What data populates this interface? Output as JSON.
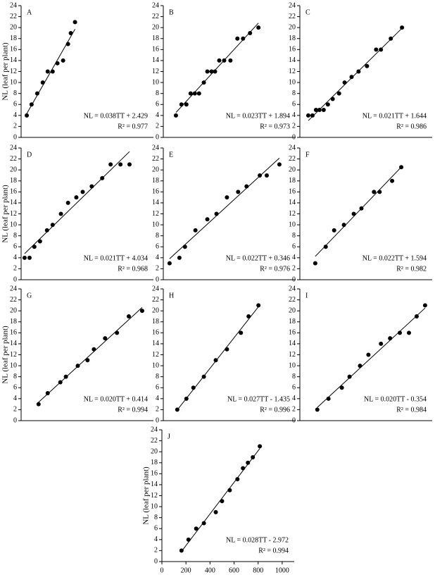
{
  "chart_data": [
    {
      "type": "scatter",
      "panel": "A",
      "ylabel": "NL (leaf per plant)",
      "color": "#000000",
      "x": [
        47,
        87,
        134,
        180,
        221,
        262,
        302,
        349,
        390,
        413,
        448
      ],
      "values": [
        4,
        6,
        8,
        10,
        12,
        12,
        13.5,
        14,
        17,
        19,
        21
      ],
      "xlim": [
        0,
        1100
      ],
      "ylim": [
        0,
        24
      ],
      "yticks": [
        0,
        2,
        4,
        6,
        8,
        10,
        12,
        14,
        16,
        18,
        20,
        22,
        24
      ],
      "annotations": [
        "NL = 0.038TT + 2.429",
        "R² = 0.977"
      ]
    },
    {
      "type": "scatter",
      "panel": "B",
      "color": "#000000",
      "x": [
        105,
        151,
        192,
        227,
        262,
        297,
        337,
        366,
        401,
        430,
        465,
        506,
        558,
        616,
        663,
        721,
        791
      ],
      "values": [
        4,
        6,
        6,
        8,
        8,
        8,
        10,
        12,
        12,
        12,
        14,
        14,
        14,
        18,
        18,
        19,
        20
      ],
      "xlim": [
        0,
        1100
      ],
      "ylim": [
        0,
        24
      ],
      "yticks": [
        0,
        2,
        4,
        6,
        8,
        10,
        12,
        14,
        16,
        18,
        20,
        22,
        24
      ],
      "annotations": [
        "NL = 0.023TT + 1.894",
        "R² = 0.973"
      ]
    },
    {
      "type": "scatter",
      "panel": "C",
      "color": "#000000",
      "x": [
        70,
        105,
        134,
        163,
        198,
        233,
        273,
        326,
        372,
        430,
        488,
        558,
        634,
        674,
        756,
        849
      ],
      "values": [
        4,
        4,
        5,
        5,
        5,
        6,
        7,
        8,
        10,
        11,
        12,
        13,
        16,
        16,
        18,
        20
      ],
      "xlim": [
        0,
        1100
      ],
      "ylim": [
        0,
        24
      ],
      "yticks": [
        0,
        2,
        4,
        6,
        8,
        10,
        12,
        14,
        16,
        18,
        20,
        22,
        24
      ],
      "annotations": [
        "NL = 0.021TT + 1.644",
        "R² = 0.986"
      ]
    },
    {
      "type": "scatter",
      "panel": "D",
      "ylabel": "NL (leaf per plant)",
      "color": "#000000",
      "x": [
        29,
        70,
        110,
        157,
        215,
        262,
        331,
        390,
        459,
        512,
        587,
        674,
        744,
        826,
        901
      ],
      "values": [
        4,
        4,
        6,
        7,
        9,
        10,
        12,
        14,
        15,
        16,
        17,
        18.5,
        21,
        21,
        21
      ],
      "xlim": [
        0,
        1100
      ],
      "ylim": [
        0,
        24
      ],
      "yticks": [
        0,
        2,
        4,
        6,
        8,
        10,
        12,
        14,
        16,
        18,
        20,
        22,
        24
      ],
      "annotations": [
        "NL = 0.021TT + 4.034",
        "R² = 0.968"
      ]
    },
    {
      "type": "scatter",
      "panel": "E",
      "color": "#000000",
      "x": [
        52,
        134,
        180,
        267,
        366,
        442,
        529,
        622,
        692,
        802,
        860,
        965
      ],
      "values": [
        3,
        4,
        6,
        9,
        11,
        12,
        15,
        16,
        17,
        19,
        19,
        21
      ],
      "xlim": [
        0,
        1100
      ],
      "ylim": [
        0,
        24
      ],
      "yticks": [
        0,
        2,
        4,
        6,
        8,
        10,
        12,
        14,
        16,
        18,
        20,
        22,
        24
      ],
      "annotations": [
        "NL = 0.022TT + 0.346",
        "R² = 0.976"
      ]
    },
    {
      "type": "scatter",
      "panel": "F",
      "color": "#000000",
      "x": [
        128,
        215,
        285,
        366,
        448,
        512,
        616,
        663,
        767,
        843
      ],
      "values": [
        3,
        6,
        9,
        10,
        12,
        13,
        16,
        16,
        18,
        20.5
      ],
      "xlim": [
        0,
        1100
      ],
      "ylim": [
        0,
        24
      ],
      "yticks": [
        0,
        2,
        4,
        6,
        8,
        10,
        12,
        14,
        16,
        18,
        20,
        22,
        24
      ],
      "annotations": [
        "NL = 0.022TT + 1.594",
        "R² = 0.982"
      ]
    },
    {
      "type": "scatter",
      "panel": "G",
      "ylabel": "NL (leaf per plant)",
      "color": "#000000",
      "x": [
        145,
        221,
        326,
        372,
        471,
        552,
        605,
        698,
        797,
        895,
        1006
      ],
      "values": [
        3,
        5,
        7,
        8,
        10,
        11,
        13,
        15,
        16,
        19,
        20
      ],
      "xlim": [
        0,
        1100
      ],
      "ylim": [
        0,
        24
      ],
      "yticks": [
        0,
        2,
        4,
        6,
        8,
        10,
        12,
        14,
        16,
        18,
        20,
        22,
        24
      ],
      "annotations": [
        "NL = 0.020TT + 0.414",
        "R² = 0.994"
      ]
    },
    {
      "type": "scatter",
      "panel": "H",
      "color": "#000000",
      "x": [
        116,
        192,
        250,
        337,
        436,
        529,
        645,
        709,
        791
      ],
      "values": [
        2,
        4,
        6,
        8,
        11,
        13,
        16,
        19,
        21
      ],
      "xlim": [
        0,
        1100
      ],
      "ylim": [
        0,
        24
      ],
      "yticks": [
        0,
        2,
        4,
        6,
        8,
        10,
        12,
        14,
        16,
        18,
        20,
        22,
        24
      ],
      "annotations": [
        "NL = 0.027TT - 1.435",
        "R² = 0.996"
      ]
    },
    {
      "type": "scatter",
      "panel": "I",
      "color": "#000000",
      "x": [
        145,
        238,
        349,
        413,
        500,
        570,
        674,
        750,
        831,
        907,
        971,
        1041
      ],
      "values": [
        2,
        4,
        6,
        8,
        10,
        12,
        14,
        15,
        16,
        16,
        19,
        21
      ],
      "xlim": [
        0,
        1100
      ],
      "ylim": [
        0,
        24
      ],
      "yticks": [
        0,
        2,
        4,
        6,
        8,
        10,
        12,
        14,
        16,
        18,
        20,
        22,
        24
      ],
      "annotations": [
        "NL = 0.020TT - 0.354",
        "R² = 0.984"
      ]
    },
    {
      "type": "scatter",
      "panel": "J",
      "ylabel": "NL (leaf per plant)",
      "color": "#000000",
      "x": [
        163,
        221,
        285,
        349,
        448,
        500,
        564,
        628,
        674,
        715,
        756,
        814
      ],
      "values": [
        2,
        4,
        6,
        7,
        9,
        11,
        13,
        15,
        17,
        18,
        19,
        21
      ],
      "xlim": [
        0,
        1100
      ],
      "xticks": [
        0,
        200,
        400,
        600,
        800,
        1000
      ],
      "ylim": [
        0,
        24
      ],
      "yticks": [
        0,
        2,
        4,
        6,
        8,
        10,
        12,
        14,
        16,
        18,
        20,
        22,
        24
      ],
      "annotations": [
        "NL = 0.028TT - 2.972",
        "R² = 0.994"
      ]
    }
  ]
}
